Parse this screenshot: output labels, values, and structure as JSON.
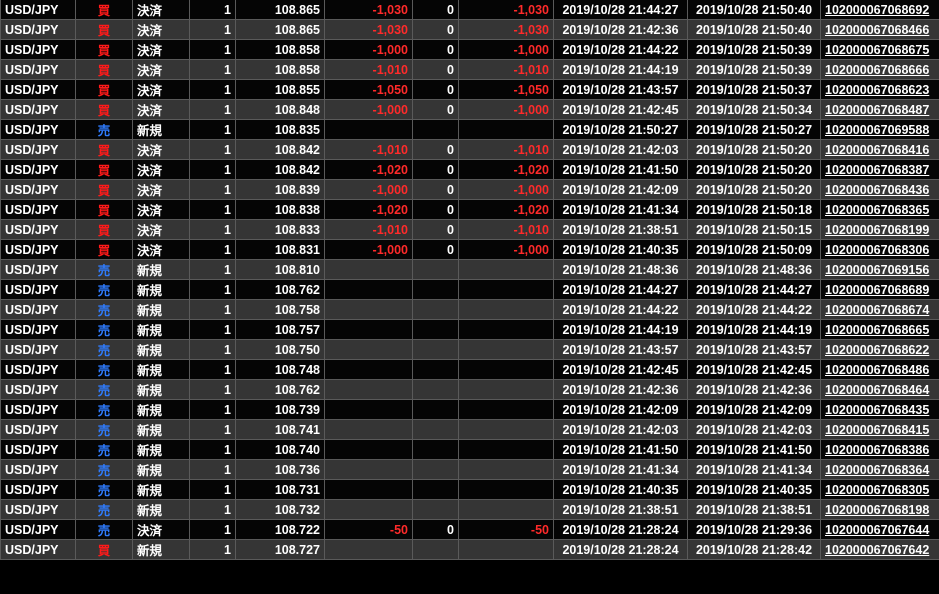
{
  "colors": {
    "buy": "#ff1a1a",
    "sell": "#2f7cff",
    "negative": "#ff2a2a"
  },
  "rows": [
    {
      "pair": "USD/JPY",
      "side": "買",
      "type": "決済",
      "qty": "1",
      "price": "108.865",
      "pl": "-1,030",
      "swap": "0",
      "total": "-1,030",
      "time_open": "2019/10/28 21:44:27",
      "time_close": "2019/10/28 21:50:40",
      "id": "102000067068692"
    },
    {
      "pair": "USD/JPY",
      "side": "買",
      "type": "決済",
      "qty": "1",
      "price": "108.865",
      "pl": "-1,030",
      "swap": "0",
      "total": "-1,030",
      "time_open": "2019/10/28 21:42:36",
      "time_close": "2019/10/28 21:50:40",
      "id": "102000067068466"
    },
    {
      "pair": "USD/JPY",
      "side": "買",
      "type": "決済",
      "qty": "1",
      "price": "108.858",
      "pl": "-1,000",
      "swap": "0",
      "total": "-1,000",
      "time_open": "2019/10/28 21:44:22",
      "time_close": "2019/10/28 21:50:39",
      "id": "102000067068675"
    },
    {
      "pair": "USD/JPY",
      "side": "買",
      "type": "決済",
      "qty": "1",
      "price": "108.858",
      "pl": "-1,010",
      "swap": "0",
      "total": "-1,010",
      "time_open": "2019/10/28 21:44:19",
      "time_close": "2019/10/28 21:50:39",
      "id": "102000067068666"
    },
    {
      "pair": "USD/JPY",
      "side": "買",
      "type": "決済",
      "qty": "1",
      "price": "108.855",
      "pl": "-1,050",
      "swap": "0",
      "total": "-1,050",
      "time_open": "2019/10/28 21:43:57",
      "time_close": "2019/10/28 21:50:37",
      "id": "102000067068623"
    },
    {
      "pair": "USD/JPY",
      "side": "買",
      "type": "決済",
      "qty": "1",
      "price": "108.848",
      "pl": "-1,000",
      "swap": "0",
      "total": "-1,000",
      "time_open": "2019/10/28 21:42:45",
      "time_close": "2019/10/28 21:50:34",
      "id": "102000067068487"
    },
    {
      "pair": "USD/JPY",
      "side": "売",
      "type": "新規",
      "qty": "1",
      "price": "108.835",
      "pl": "",
      "swap": "",
      "total": "",
      "time_open": "2019/10/28 21:50:27",
      "time_close": "2019/10/28 21:50:27",
      "id": "102000067069588"
    },
    {
      "pair": "USD/JPY",
      "side": "買",
      "type": "決済",
      "qty": "1",
      "price": "108.842",
      "pl": "-1,010",
      "swap": "0",
      "total": "-1,010",
      "time_open": "2019/10/28 21:42:03",
      "time_close": "2019/10/28 21:50:20",
      "id": "102000067068416"
    },
    {
      "pair": "USD/JPY",
      "side": "買",
      "type": "決済",
      "qty": "1",
      "price": "108.842",
      "pl": "-1,020",
      "swap": "0",
      "total": "-1,020",
      "time_open": "2019/10/28 21:41:50",
      "time_close": "2019/10/28 21:50:20",
      "id": "102000067068387"
    },
    {
      "pair": "USD/JPY",
      "side": "買",
      "type": "決済",
      "qty": "1",
      "price": "108.839",
      "pl": "-1,000",
      "swap": "0",
      "total": "-1,000",
      "time_open": "2019/10/28 21:42:09",
      "time_close": "2019/10/28 21:50:20",
      "id": "102000067068436"
    },
    {
      "pair": "USD/JPY",
      "side": "買",
      "type": "決済",
      "qty": "1",
      "price": "108.838",
      "pl": "-1,020",
      "swap": "0",
      "total": "-1,020",
      "time_open": "2019/10/28 21:41:34",
      "time_close": "2019/10/28 21:50:18",
      "id": "102000067068365"
    },
    {
      "pair": "USD/JPY",
      "side": "買",
      "type": "決済",
      "qty": "1",
      "price": "108.833",
      "pl": "-1,010",
      "swap": "0",
      "total": "-1,010",
      "time_open": "2019/10/28 21:38:51",
      "time_close": "2019/10/28 21:50:15",
      "id": "102000067068199"
    },
    {
      "pair": "USD/JPY",
      "side": "買",
      "type": "決済",
      "qty": "1",
      "price": "108.831",
      "pl": "-1,000",
      "swap": "0",
      "total": "-1,000",
      "time_open": "2019/10/28 21:40:35",
      "time_close": "2019/10/28 21:50:09",
      "id": "102000067068306"
    },
    {
      "pair": "USD/JPY",
      "side": "売",
      "type": "新規",
      "qty": "1",
      "price": "108.810",
      "pl": "",
      "swap": "",
      "total": "",
      "time_open": "2019/10/28 21:48:36",
      "time_close": "2019/10/28 21:48:36",
      "id": "102000067069156"
    },
    {
      "pair": "USD/JPY",
      "side": "売",
      "type": "新規",
      "qty": "1",
      "price": "108.762",
      "pl": "",
      "swap": "",
      "total": "",
      "time_open": "2019/10/28 21:44:27",
      "time_close": "2019/10/28 21:44:27",
      "id": "102000067068689"
    },
    {
      "pair": "USD/JPY",
      "side": "売",
      "type": "新規",
      "qty": "1",
      "price": "108.758",
      "pl": "",
      "swap": "",
      "total": "",
      "time_open": "2019/10/28 21:44:22",
      "time_close": "2019/10/28 21:44:22",
      "id": "102000067068674"
    },
    {
      "pair": "USD/JPY",
      "side": "売",
      "type": "新規",
      "qty": "1",
      "price": "108.757",
      "pl": "",
      "swap": "",
      "total": "",
      "time_open": "2019/10/28 21:44:19",
      "time_close": "2019/10/28 21:44:19",
      "id": "102000067068665"
    },
    {
      "pair": "USD/JPY",
      "side": "売",
      "type": "新規",
      "qty": "1",
      "price": "108.750",
      "pl": "",
      "swap": "",
      "total": "",
      "time_open": "2019/10/28 21:43:57",
      "time_close": "2019/10/28 21:43:57",
      "id": "102000067068622"
    },
    {
      "pair": "USD/JPY",
      "side": "売",
      "type": "新規",
      "qty": "1",
      "price": "108.748",
      "pl": "",
      "swap": "",
      "total": "",
      "time_open": "2019/10/28 21:42:45",
      "time_close": "2019/10/28 21:42:45",
      "id": "102000067068486"
    },
    {
      "pair": "USD/JPY",
      "side": "売",
      "type": "新規",
      "qty": "1",
      "price": "108.762",
      "pl": "",
      "swap": "",
      "total": "",
      "time_open": "2019/10/28 21:42:36",
      "time_close": "2019/10/28 21:42:36",
      "id": "102000067068464"
    },
    {
      "pair": "USD/JPY",
      "side": "売",
      "type": "新規",
      "qty": "1",
      "price": "108.739",
      "pl": "",
      "swap": "",
      "total": "",
      "time_open": "2019/10/28 21:42:09",
      "time_close": "2019/10/28 21:42:09",
      "id": "102000067068435"
    },
    {
      "pair": "USD/JPY",
      "side": "売",
      "type": "新規",
      "qty": "1",
      "price": "108.741",
      "pl": "",
      "swap": "",
      "total": "",
      "time_open": "2019/10/28 21:42:03",
      "time_close": "2019/10/28 21:42:03",
      "id": "102000067068415"
    },
    {
      "pair": "USD/JPY",
      "side": "売",
      "type": "新規",
      "qty": "1",
      "price": "108.740",
      "pl": "",
      "swap": "",
      "total": "",
      "time_open": "2019/10/28 21:41:50",
      "time_close": "2019/10/28 21:41:50",
      "id": "102000067068386"
    },
    {
      "pair": "USD/JPY",
      "side": "売",
      "type": "新規",
      "qty": "1",
      "price": "108.736",
      "pl": "",
      "swap": "",
      "total": "",
      "time_open": "2019/10/28 21:41:34",
      "time_close": "2019/10/28 21:41:34",
      "id": "102000067068364"
    },
    {
      "pair": "USD/JPY",
      "side": "売",
      "type": "新規",
      "qty": "1",
      "price": "108.731",
      "pl": "",
      "swap": "",
      "total": "",
      "time_open": "2019/10/28 21:40:35",
      "time_close": "2019/10/28 21:40:35",
      "id": "102000067068305"
    },
    {
      "pair": "USD/JPY",
      "side": "売",
      "type": "新規",
      "qty": "1",
      "price": "108.732",
      "pl": "",
      "swap": "",
      "total": "",
      "time_open": "2019/10/28 21:38:51",
      "time_close": "2019/10/28 21:38:51",
      "id": "102000067068198"
    },
    {
      "pair": "USD/JPY",
      "side": "売",
      "type": "決済",
      "qty": "1",
      "price": "108.722",
      "pl": "-50",
      "swap": "0",
      "total": "-50",
      "time_open": "2019/10/28 21:28:24",
      "time_close": "2019/10/28 21:29:36",
      "id": "102000067067644"
    },
    {
      "pair": "USD/JPY",
      "side": "買",
      "type": "新規",
      "qty": "1",
      "price": "108.727",
      "pl": "",
      "swap": "",
      "total": "",
      "time_open": "2019/10/28 21:28:24",
      "time_close": "2019/10/28 21:28:42",
      "id": "102000067067642"
    }
  ]
}
